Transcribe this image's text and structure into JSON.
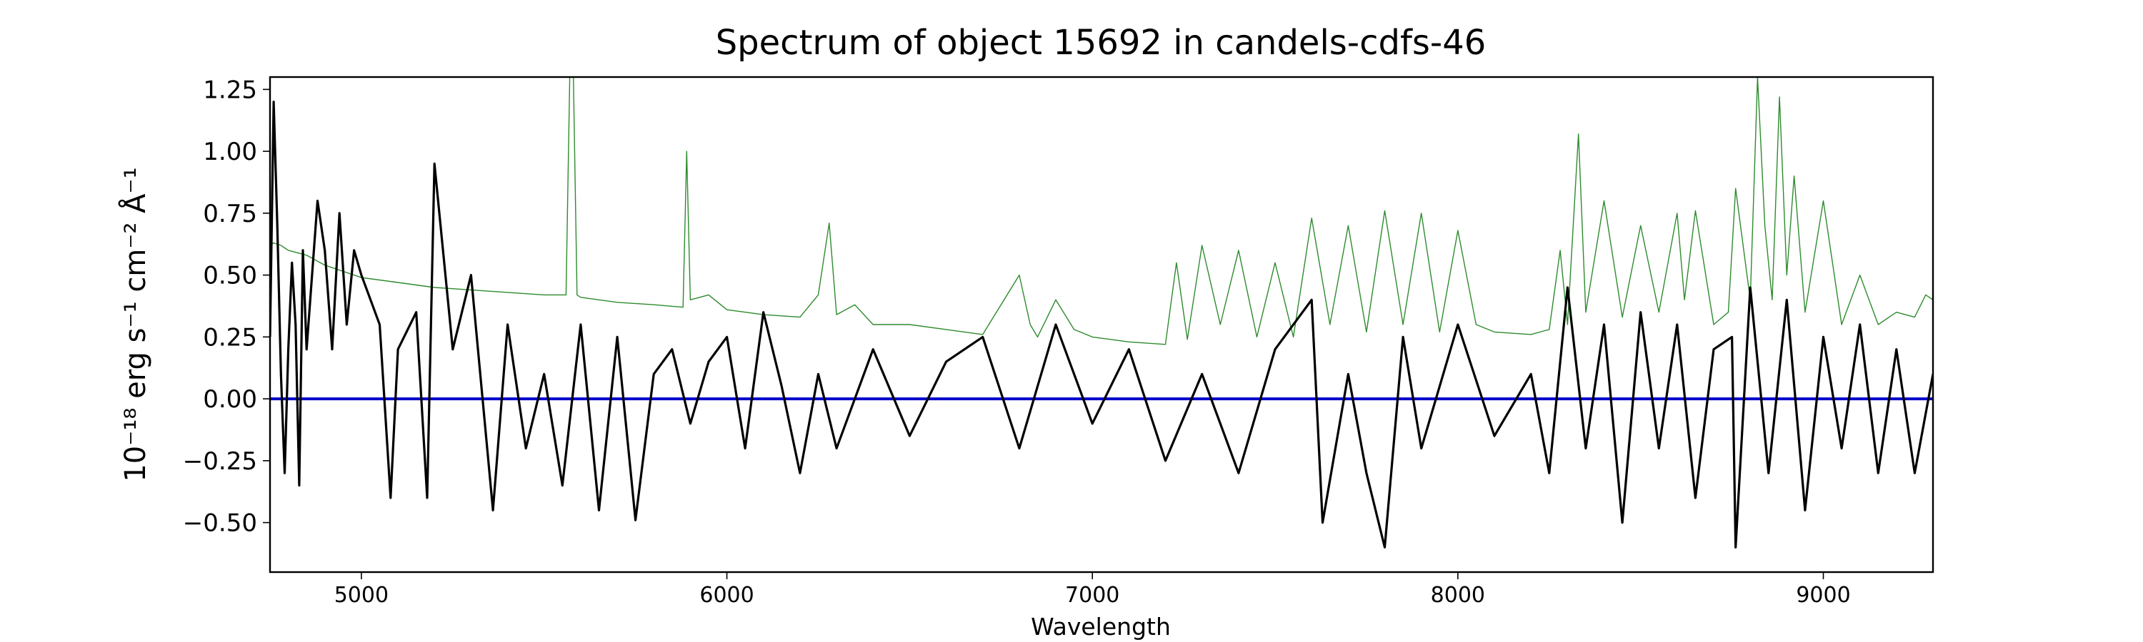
{
  "chart_data": {
    "type": "line",
    "title": "Spectrum of object 15692 in candels-cdfs-46",
    "xlabel": "Wavelength",
    "ylabel": "10⁻¹⁸ erg s⁻¹ cm⁻² Å⁻¹",
    "xlim": [
      4750,
      9300
    ],
    "ylim": [
      -0.7,
      1.3
    ],
    "grid": false,
    "x_ticks": [
      5000,
      6000,
      7000,
      8000,
      9000
    ],
    "y_ticks": [
      -0.5,
      -0.25,
      0.0,
      0.25,
      0.5,
      0.75,
      1.0,
      1.25
    ],
    "x_tick_labels": [
      "5000",
      "6000",
      "7000",
      "8000",
      "9000"
    ],
    "y_tick_labels": [
      "−0.50",
      "−0.25",
      "0.00",
      "0.25",
      "0.50",
      "0.75",
      "1.00",
      "1.25"
    ],
    "series": [
      {
        "role": "flux",
        "color": "#000000",
        "x": [
          4750,
          4760,
          4770,
          4780,
          4790,
          4800,
          4810,
          4820,
          4830,
          4840,
          4850,
          4860,
          4880,
          4900,
          4920,
          4940,
          4960,
          4980,
          5000,
          5050,
          5080,
          5100,
          5150,
          5180,
          5200,
          5250,
          5300,
          5360,
          5400,
          5450,
          5500,
          5550,
          5600,
          5650,
          5700,
          5750,
          5800,
          5850,
          5900,
          5950,
          6000,
          6050,
          6100,
          6150,
          6200,
          6250,
          6300,
          6400,
          6500,
          6600,
          6700,
          6800,
          6900,
          7000,
          7100,
          7200,
          7300,
          7400,
          7500,
          7600,
          7630,
          7700,
          7750,
          7800,
          7850,
          7900,
          8000,
          8100,
          8200,
          8250,
          8300,
          8350,
          8400,
          8450,
          8500,
          8550,
          8600,
          8650,
          8700,
          8750,
          8760,
          8800,
          8850,
          8900,
          8950,
          9000,
          9050,
          9100,
          9150,
          9200,
          9250,
          9300
        ],
        "y": [
          0.25,
          1.2,
          0.7,
          0.1,
          -0.3,
          0.2,
          0.55,
          0.3,
          -0.35,
          0.6,
          0.2,
          0.4,
          0.8,
          0.6,
          0.2,
          0.75,
          0.3,
          0.6,
          0.5,
          0.3,
          -0.4,
          0.2,
          0.35,
          -0.4,
          0.95,
          0.2,
          0.5,
          -0.45,
          0.3,
          -0.2,
          0.1,
          -0.35,
          0.3,
          -0.45,
          0.25,
          -0.49,
          0.1,
          0.2,
          -0.1,
          0.15,
          0.25,
          -0.2,
          0.35,
          0.05,
          -0.3,
          0.1,
          -0.2,
          0.2,
          -0.15,
          0.15,
          0.25,
          -0.2,
          0.3,
          -0.1,
          0.2,
          -0.25,
          0.1,
          -0.3,
          0.2,
          0.4,
          -0.5,
          0.1,
          -0.3,
          -0.6,
          0.25,
          -0.2,
          0.3,
          -0.15,
          0.1,
          -0.3,
          0.45,
          -0.2,
          0.3,
          -0.5,
          0.35,
          -0.2,
          0.3,
          -0.4,
          0.2,
          0.25,
          -0.6,
          0.45,
          -0.3,
          0.4,
          -0.45,
          0.25,
          -0.2,
          0.3,
          -0.3,
          0.2,
          -0.3,
          0.1
        ]
      },
      {
        "role": "error",
        "color": "#2e8b2e",
        "x": [
          4750,
          4760,
          4780,
          4800,
          4850,
          4900,
          5000,
          5100,
          5200,
          5300,
          5400,
          5500,
          5560,
          5570,
          5580,
          5590,
          5600,
          5700,
          5800,
          5880,
          5890,
          5900,
          5950,
          6000,
          6100,
          6200,
          6250,
          6280,
          6300,
          6350,
          6400,
          6500,
          6600,
          6700,
          6800,
          6830,
          6850,
          6900,
          6950,
          7000,
          7100,
          7200,
          7230,
          7260,
          7300,
          7350,
          7400,
          7450,
          7500,
          7550,
          7600,
          7650,
          7700,
          7750,
          7800,
          7850,
          7900,
          7950,
          8000,
          8050,
          8100,
          8200,
          8250,
          8280,
          8300,
          8330,
          8350,
          8400,
          8450,
          8500,
          8550,
          8600,
          8620,
          8650,
          8700,
          8740,
          8760,
          8800,
          8820,
          8840,
          8860,
          8880,
          8900,
          8920,
          8950,
          9000,
          9050,
          9100,
          9150,
          9200,
          9250,
          9280,
          9300
        ],
        "y": [
          0.62,
          0.63,
          0.62,
          0.6,
          0.58,
          0.54,
          0.49,
          0.47,
          0.45,
          0.44,
          0.43,
          0.42,
          0.42,
          1.3,
          1.3,
          0.42,
          0.41,
          0.39,
          0.38,
          0.37,
          1.0,
          0.4,
          0.42,
          0.36,
          0.34,
          0.33,
          0.42,
          0.71,
          0.34,
          0.38,
          0.3,
          0.3,
          0.28,
          0.26,
          0.5,
          0.3,
          0.25,
          0.4,
          0.28,
          0.25,
          0.23,
          0.22,
          0.55,
          0.24,
          0.62,
          0.3,
          0.6,
          0.25,
          0.55,
          0.25,
          0.73,
          0.3,
          0.7,
          0.27,
          0.76,
          0.3,
          0.75,
          0.27,
          0.68,
          0.3,
          0.27,
          0.26,
          0.28,
          0.6,
          0.3,
          1.07,
          0.35,
          0.8,
          0.33,
          0.7,
          0.35,
          0.75,
          0.4,
          0.76,
          0.3,
          0.35,
          0.85,
          0.4,
          1.3,
          0.7,
          0.4,
          1.22,
          0.5,
          0.9,
          0.35,
          0.8,
          0.3,
          0.5,
          0.3,
          0.35,
          0.33,
          0.42,
          0.4
        ]
      },
      {
        "role": "zero",
        "color": "#0000cc",
        "x": [
          4750,
          9300
        ],
        "y": [
          0.0,
          0.0
        ]
      }
    ]
  }
}
